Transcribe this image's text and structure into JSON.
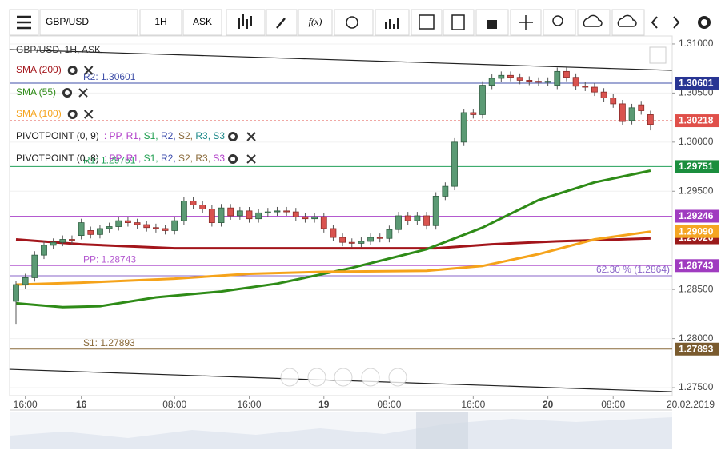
{
  "toolbar": {
    "symbol": "GBP/USD",
    "timeframe": "1H",
    "price_side": "ASK",
    "function_button": "f(x)"
  },
  "chart_data": {
    "type": "candlestick",
    "title": "GBP/USD, 1H, ASK",
    "categories": [
      null,
      "16:00",
      null,
      null,
      null,
      null,
      null,
      "16",
      null,
      null,
      null,
      null,
      null,
      null,
      null,
      null,
      null,
      "08:00",
      null,
      null,
      null,
      null,
      null,
      null,
      null,
      "16:00",
      null,
      null,
      null,
      null,
      null,
      null,
      null,
      "19",
      null,
      null,
      null,
      null,
      null,
      null,
      "08:00",
      null,
      null,
      null,
      null,
      null,
      null,
      null,
      null,
      "16:00",
      null,
      null,
      null,
      null,
      null,
      null,
      null,
      "20",
      null,
      null,
      null,
      null,
      null,
      null,
      "08:00",
      null,
      null,
      null,
      null
    ],
    "x_end_label": "20.02.2019",
    "series": [
      {
        "name": "GBP/USD",
        "up_color": "#5b9a74",
        "down_color": "#d9534f",
        "open": [
          1.2838,
          1.2855,
          1.2862,
          1.2885,
          1.2895,
          1.2898,
          1.2901,
          1.2905,
          1.291,
          1.2906,
          1.2912,
          1.2914,
          1.292,
          1.2918,
          1.2916,
          1.2913,
          1.2912,
          1.291,
          1.292,
          1.294,
          1.2936,
          1.2932,
          1.2918,
          1.2933,
          1.2925,
          1.293,
          1.2922,
          1.2928,
          1.2929,
          1.293,
          1.2929,
          1.2924,
          1.2922,
          1.2924,
          1.2912,
          1.2903,
          1.2898,
          1.2897,
          1.2899,
          1.2903,
          1.2902,
          1.2911,
          1.2925,
          1.292,
          1.2925,
          1.2915,
          1.2945,
          1.2955,
          1.3,
          1.303,
          1.3028,
          1.3058,
          1.3065,
          1.3068,
          1.3066,
          1.3063,
          1.3062,
          1.3061,
          1.3058,
          1.3072,
          1.3066,
          1.3057,
          1.3056,
          1.3051,
          1.3045,
          1.3039,
          1.3022,
          1.3038,
          1.3028
        ],
        "high": [
          1.2859,
          1.2866,
          1.2889,
          1.2899,
          1.2902,
          1.2905,
          1.2905,
          1.2922,
          1.2914,
          1.2916,
          1.2918,
          1.2924,
          1.2924,
          1.2922,
          1.292,
          1.2917,
          1.2916,
          1.2924,
          1.2944,
          1.2944,
          1.294,
          1.2936,
          1.2937,
          1.2937,
          1.2934,
          1.2934,
          1.2932,
          1.2933,
          1.2934,
          1.2934,
          1.2933,
          1.2928,
          1.2928,
          1.2928,
          1.2916,
          1.2907,
          1.2902,
          1.2903,
          1.2907,
          1.2907,
          1.2915,
          1.2929,
          1.2929,
          1.2929,
          1.2929,
          1.2949,
          1.2959,
          1.3004,
          1.3034,
          1.3034,
          1.3062,
          1.3069,
          1.3072,
          1.3072,
          1.307,
          1.3067,
          1.3066,
          1.3066,
          1.3076,
          1.3076,
          1.307,
          1.3061,
          1.306,
          1.3055,
          1.3049,
          1.3043,
          1.3039,
          1.3042,
          1.3032
        ],
        "low": [
          1.2815,
          1.2851,
          1.2858,
          1.2881,
          1.2891,
          1.2894,
          1.2896,
          1.2901,
          1.2902,
          1.2902,
          1.2908,
          1.291,
          1.2914,
          1.2912,
          1.2909,
          1.2908,
          1.2906,
          1.2906,
          1.2916,
          1.2932,
          1.2928,
          1.2914,
          1.2914,
          1.2921,
          1.2921,
          1.2918,
          1.2918,
          1.2924,
          1.2925,
          1.2925,
          1.292,
          1.2918,
          1.2918,
          1.2908,
          1.2899,
          1.2894,
          1.2893,
          1.2893,
          1.2895,
          1.2898,
          1.2898,
          1.2907,
          1.2916,
          1.2916,
          1.2911,
          1.2911,
          1.2941,
          1.2951,
          1.2996,
          1.3024,
          1.3024,
          1.3054,
          1.3061,
          1.3062,
          1.3059,
          1.3058,
          1.3057,
          1.3057,
          1.3054,
          1.3062,
          1.3053,
          1.3052,
          1.3047,
          1.3041,
          1.3035,
          1.3017,
          1.3018,
          1.3028,
          1.3012
        ],
        "close": [
          1.2855,
          1.2862,
          1.2885,
          1.2895,
          1.2898,
          1.2901,
          1.29,
          1.2918,
          1.2906,
          1.2912,
          1.2914,
          1.292,
          1.2918,
          1.2916,
          1.2913,
          1.2912,
          1.291,
          1.292,
          1.294,
          1.2936,
          1.2932,
          1.2918,
          1.2933,
          1.2925,
          1.293,
          1.2922,
          1.2928,
          1.2929,
          1.293,
          1.2929,
          1.2924,
          1.2922,
          1.2924,
          1.2912,
          1.2903,
          1.2898,
          1.2897,
          1.2899,
          1.2903,
          1.2902,
          1.2911,
          1.2925,
          1.292,
          1.2925,
          1.2915,
          1.2945,
          1.2955,
          1.3,
          1.303,
          1.3028,
          1.3058,
          1.3065,
          1.3068,
          1.3066,
          1.3063,
          1.3062,
          1.3061,
          1.3062,
          1.3072,
          1.3066,
          1.3057,
          1.3056,
          1.3051,
          1.3045,
          1.3039,
          1.3021,
          1.3035,
          1.3032,
          1.3018
        ]
      }
    ],
    "overlays": [
      {
        "name": "SMA (200)",
        "color": "#a3151b",
        "x": [
          0,
          7,
          17,
          33,
          45,
          51,
          58,
          68
        ],
        "values": [
          1.2901,
          1.2896,
          1.2892,
          1.2892,
          1.2892,
          1.2896,
          1.2899,
          1.2902
        ]
      },
      {
        "name": "SMA (55)",
        "color": "#2e8b17",
        "x": [
          0,
          5,
          9,
          15,
          22,
          28,
          36,
          44,
          50,
          56,
          62,
          68
        ],
        "values": [
          1.2836,
          1.2832,
          1.2833,
          1.2842,
          1.2848,
          1.2856,
          1.2872,
          1.2891,
          1.2913,
          1.2941,
          1.2959,
          1.2971
        ]
      },
      {
        "name": "SMA (100)",
        "color": "#f5a31a",
        "x": [
          0,
          7,
          17,
          25,
          33,
          44,
          50,
          56,
          62,
          68
        ],
        "values": [
          1.2855,
          1.2857,
          1.2861,
          1.2866,
          1.2868,
          1.2869,
          1.2874,
          1.2886,
          1.2901,
          1.2909
        ]
      }
    ],
    "pivot_indicators": [
      {
        "name": "PIVOTPOINT (0, 9)",
        "parts": [
          ": PP,",
          " R1,",
          " S1,",
          " R2,",
          " S2,",
          " R3,",
          " S3"
        ],
        "colors": [
          "#b03cc8",
          "#b03cc8",
          "#1e9e4f",
          "#3949ab",
          "#8a6a3a",
          "#1e8a8a",
          "#1e8a8a"
        ]
      },
      {
        "name": "PIVOTPOINT (0, 8)",
        "parts": [
          ": PP,",
          " R1,",
          " S1,",
          " R2,",
          " S2,",
          " R3,",
          " S3"
        ],
        "colors": [
          "#b03cc8",
          "#b03cc8",
          "#1e9e4f",
          "#3949ab",
          "#8a6a3a",
          "#8a6a3a",
          "#b03cc8"
        ]
      }
    ],
    "levels": [
      {
        "value": 1.30601,
        "label": "R2: 1.30601",
        "color": "#3f4fa8"
      },
      {
        "value": 1.30218,
        "color": "#e0504a",
        "style": "dashed"
      },
      {
        "value": 1.29751,
        "label": "R1: 1.29751",
        "color": "#22a05a"
      },
      {
        "value": 1.29246,
        "color": "#b45ad0"
      },
      {
        "value": 1.28743,
        "label": "PP: 1.28743",
        "color": "#b45ad0"
      },
      {
        "value": 1.2864,
        "label": "62.30 % (1.2864)",
        "color": "#8a66c8",
        "label_side": "right"
      },
      {
        "value": 1.27893,
        "label": "S1: 1.27893",
        "color": "#8a6a3a"
      }
    ],
    "axis_markers": [
      {
        "value": 1.30601,
        "color": "#283593"
      },
      {
        "value": 1.30218,
        "color": "#e0504a"
      },
      {
        "value": 1.29751,
        "color": "#1b8e3e"
      },
      {
        "value": 1.29246,
        "color": "#a03cc0"
      },
      {
        "value": 1.29026,
        "color": "#9b1b1b"
      },
      {
        "value": {
          "value": 1.2909,
          "label": "1.29090"
        },
        "color": "#f5a623"
      },
      {
        "value": 1.28743,
        "color": "#a03cc0"
      },
      {
        "value": 1.27893,
        "color": "#7a5b2e"
      }
    ],
    "trendlines": [
      {
        "color": "#222222",
        "x": [
          -0.7,
          70.3
        ],
        "values": [
          1.30943,
          1.30731
        ]
      },
      {
        "color": "#222222",
        "x": [
          -0.7,
          70.3
        ],
        "values": [
          1.27687,
          1.27459
        ]
      }
    ],
    "ylim": [
      1.27419,
      1.31081
    ],
    "yticks": [
      {
        "value": 1.31,
        "label": "1.31000"
      },
      {
        "value": 1.305,
        "label": "1.30500"
      },
      {
        "value": 1.3,
        "label": "1.30000"
      },
      {
        "value": 1.295,
        "label": "1.29500"
      },
      {
        "value": 1.285,
        "label": "1.28500"
      },
      {
        "value": 1.28,
        "label": "1.28000"
      },
      {
        "value": 1.275,
        "label": "1.27500"
      }
    ]
  }
}
